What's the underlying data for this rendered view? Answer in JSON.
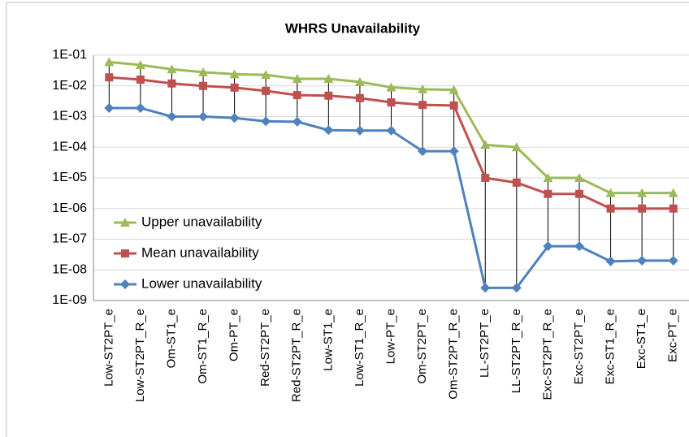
{
  "chart_data": {
    "type": "line",
    "title": "WHRS Unavailability",
    "log_scale": true,
    "grid": true,
    "legend": "lower left",
    "categories": [
      "Low-ST2PT_e",
      "Low-ST2PT_R_e",
      "Om-ST1_e",
      "Om-ST1_R_e",
      "Om-PT_e",
      "Red-ST2PT_e",
      "Red-ST2PT_R_e",
      "Low-ST1_e",
      "Low-ST1_R_e",
      "Low-PT_e",
      "Om-ST2PT_e",
      "Om-ST2PT_R_e",
      "LL-ST2PT_e",
      "LL-ST2PT_R_e",
      "Exc-ST2PT_R_e",
      "Exc-ST2PT_e",
      "Exc-ST1_R_e",
      "Exc-ST1_e",
      "Exc-PT_e"
    ],
    "series": [
      {
        "name": "Upper unavailability",
        "color": "#9bbb59",
        "marker": "triangle",
        "values": [
          0.06,
          0.048,
          0.035,
          0.028,
          0.024,
          0.023,
          0.017,
          0.017,
          0.0135,
          0.009,
          0.0078,
          0.0074,
          0.00012,
          0.0001,
          1e-05,
          1e-05,
          3.2e-06,
          3.2e-06,
          3.2e-06
        ]
      },
      {
        "name": "Mean unavailability",
        "color": "#c0504d",
        "marker": "square",
        "values": [
          0.019,
          0.016,
          0.012,
          0.01,
          0.0088,
          0.0069,
          0.005,
          0.0048,
          0.004,
          0.0029,
          0.0024,
          0.0023,
          1e-05,
          7e-06,
          3e-06,
          3e-06,
          1e-06,
          1e-06,
          1e-06
        ]
      },
      {
        "name": "Lower unavailability",
        "color": "#4f81bd",
        "marker": "diamond",
        "values": [
          0.0019,
          0.0019,
          0.001,
          0.001,
          0.0009,
          0.0007,
          0.00068,
          0.00036,
          0.00035,
          0.00035,
          7.4e-05,
          7.4e-05,
          2.6e-09,
          2.6e-09,
          5.9e-08,
          5.9e-08,
          1.9e-08,
          2e-08,
          2e-08
        ]
      }
    ],
    "ylim": [
      1e-09,
      0.1
    ],
    "yticks": [
      {
        "value": 0.1,
        "label": "1E-01"
      },
      {
        "value": 0.01,
        "label": "1E-02"
      },
      {
        "value": 0.001,
        "label": "1E-03"
      },
      {
        "value": 0.0001,
        "label": "1E-04"
      },
      {
        "value": 1e-05,
        "label": "1E-05"
      },
      {
        "value": 1e-06,
        "label": "1E-06"
      },
      {
        "value": 1e-07,
        "label": "1E-07"
      },
      {
        "value": 1e-08,
        "label": "1E-08"
      },
      {
        "value": 1e-09,
        "label": "1E-09"
      }
    ]
  }
}
